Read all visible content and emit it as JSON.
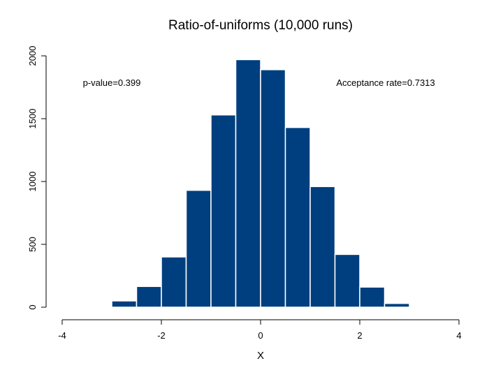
{
  "chart_data": {
    "type": "bar",
    "title": "Ratio-of-uniforms (10,000 runs)",
    "xlabel": "X",
    "ylabel": "",
    "xlim": [
      -4,
      4
    ],
    "ylim": [
      0,
      2000
    ],
    "x_ticks": [
      "-4",
      "-2",
      "0",
      "2",
      "4"
    ],
    "y_ticks": [
      "0",
      "500",
      "1000",
      "1500",
      "2000"
    ],
    "bin_width": 0.5,
    "bins": [
      {
        "start": -3.0,
        "value": 50
      },
      {
        "start": -2.5,
        "value": 165
      },
      {
        "start": -2.0,
        "value": 400
      },
      {
        "start": -1.5,
        "value": 930
      },
      {
        "start": -1.0,
        "value": 1530
      },
      {
        "start": -0.5,
        "value": 1970
      },
      {
        "start": 0.0,
        "value": 1890
      },
      {
        "start": 0.5,
        "value": 1430
      },
      {
        "start": 1.0,
        "value": 960
      },
      {
        "start": 1.5,
        "value": 420
      },
      {
        "start": 2.0,
        "value": 160
      },
      {
        "start": 2.5,
        "value": 30
      }
    ],
    "bar_color": "#003f7f",
    "grid": false,
    "annotations": {
      "p_value": "p-value=0.399",
      "acceptance": "Acceptance rate=0.7313"
    }
  }
}
